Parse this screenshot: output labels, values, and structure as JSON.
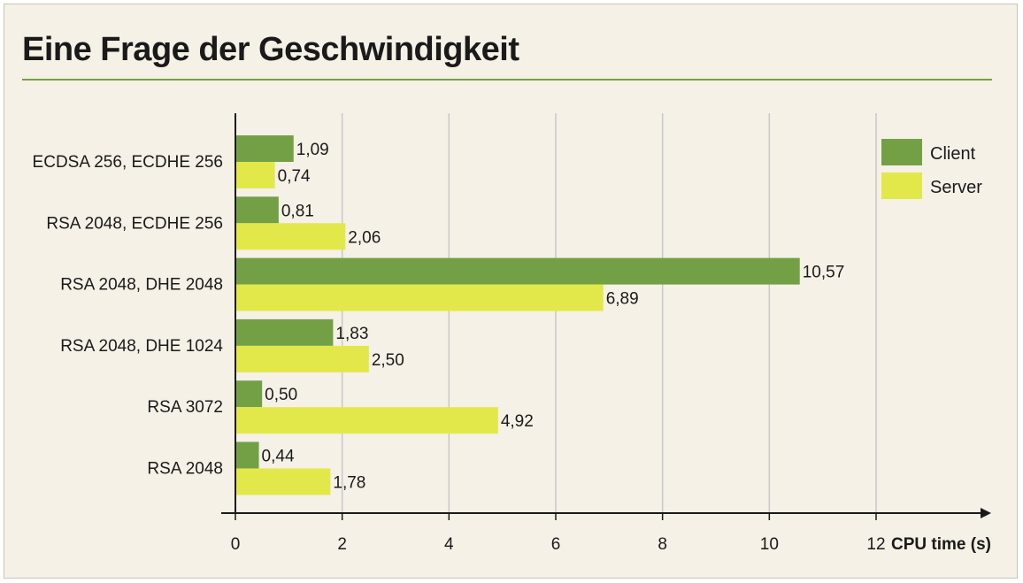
{
  "chart_data": {
    "type": "bar",
    "orientation": "horizontal",
    "title": "Eine Frage der Geschwindigkeit",
    "xlabel": "CPU time (s)",
    "ylabel": "",
    "xlim": [
      0,
      12
    ],
    "x_ticks": [
      "0",
      "2",
      "4",
      "6",
      "8",
      "10",
      "12"
    ],
    "grid": "vertical",
    "legend_position": "top-right",
    "categories": [
      "ECDSA 256, ECDHE 256",
      "RSA 2048, ECDHE 256",
      "RSA 2048, DHE 2048",
      "RSA 2048, DHE 1024",
      "RSA 3072",
      "RSA 2048"
    ],
    "series": [
      {
        "name": "Client",
        "color": "#74a045",
        "values": [
          1.09,
          0.81,
          10.57,
          1.83,
          0.5,
          0.44
        ],
        "value_labels": [
          "1,09",
          "0,81",
          "10,57",
          "1,83",
          "0,50",
          "0,44"
        ]
      },
      {
        "name": "Server",
        "color": "#e3e84a",
        "values": [
          0.74,
          2.06,
          6.89,
          2.5,
          4.92,
          1.78
        ],
        "value_labels": [
          "0,74",
          "2,06",
          "6,89",
          "2,50",
          "4,92",
          "1,78"
        ]
      }
    ]
  },
  "colors": {
    "background": "#f5f1e6",
    "accent_rule": "#74a045",
    "grid": "#c8c8c8",
    "axis": "#1a1a1a"
  }
}
